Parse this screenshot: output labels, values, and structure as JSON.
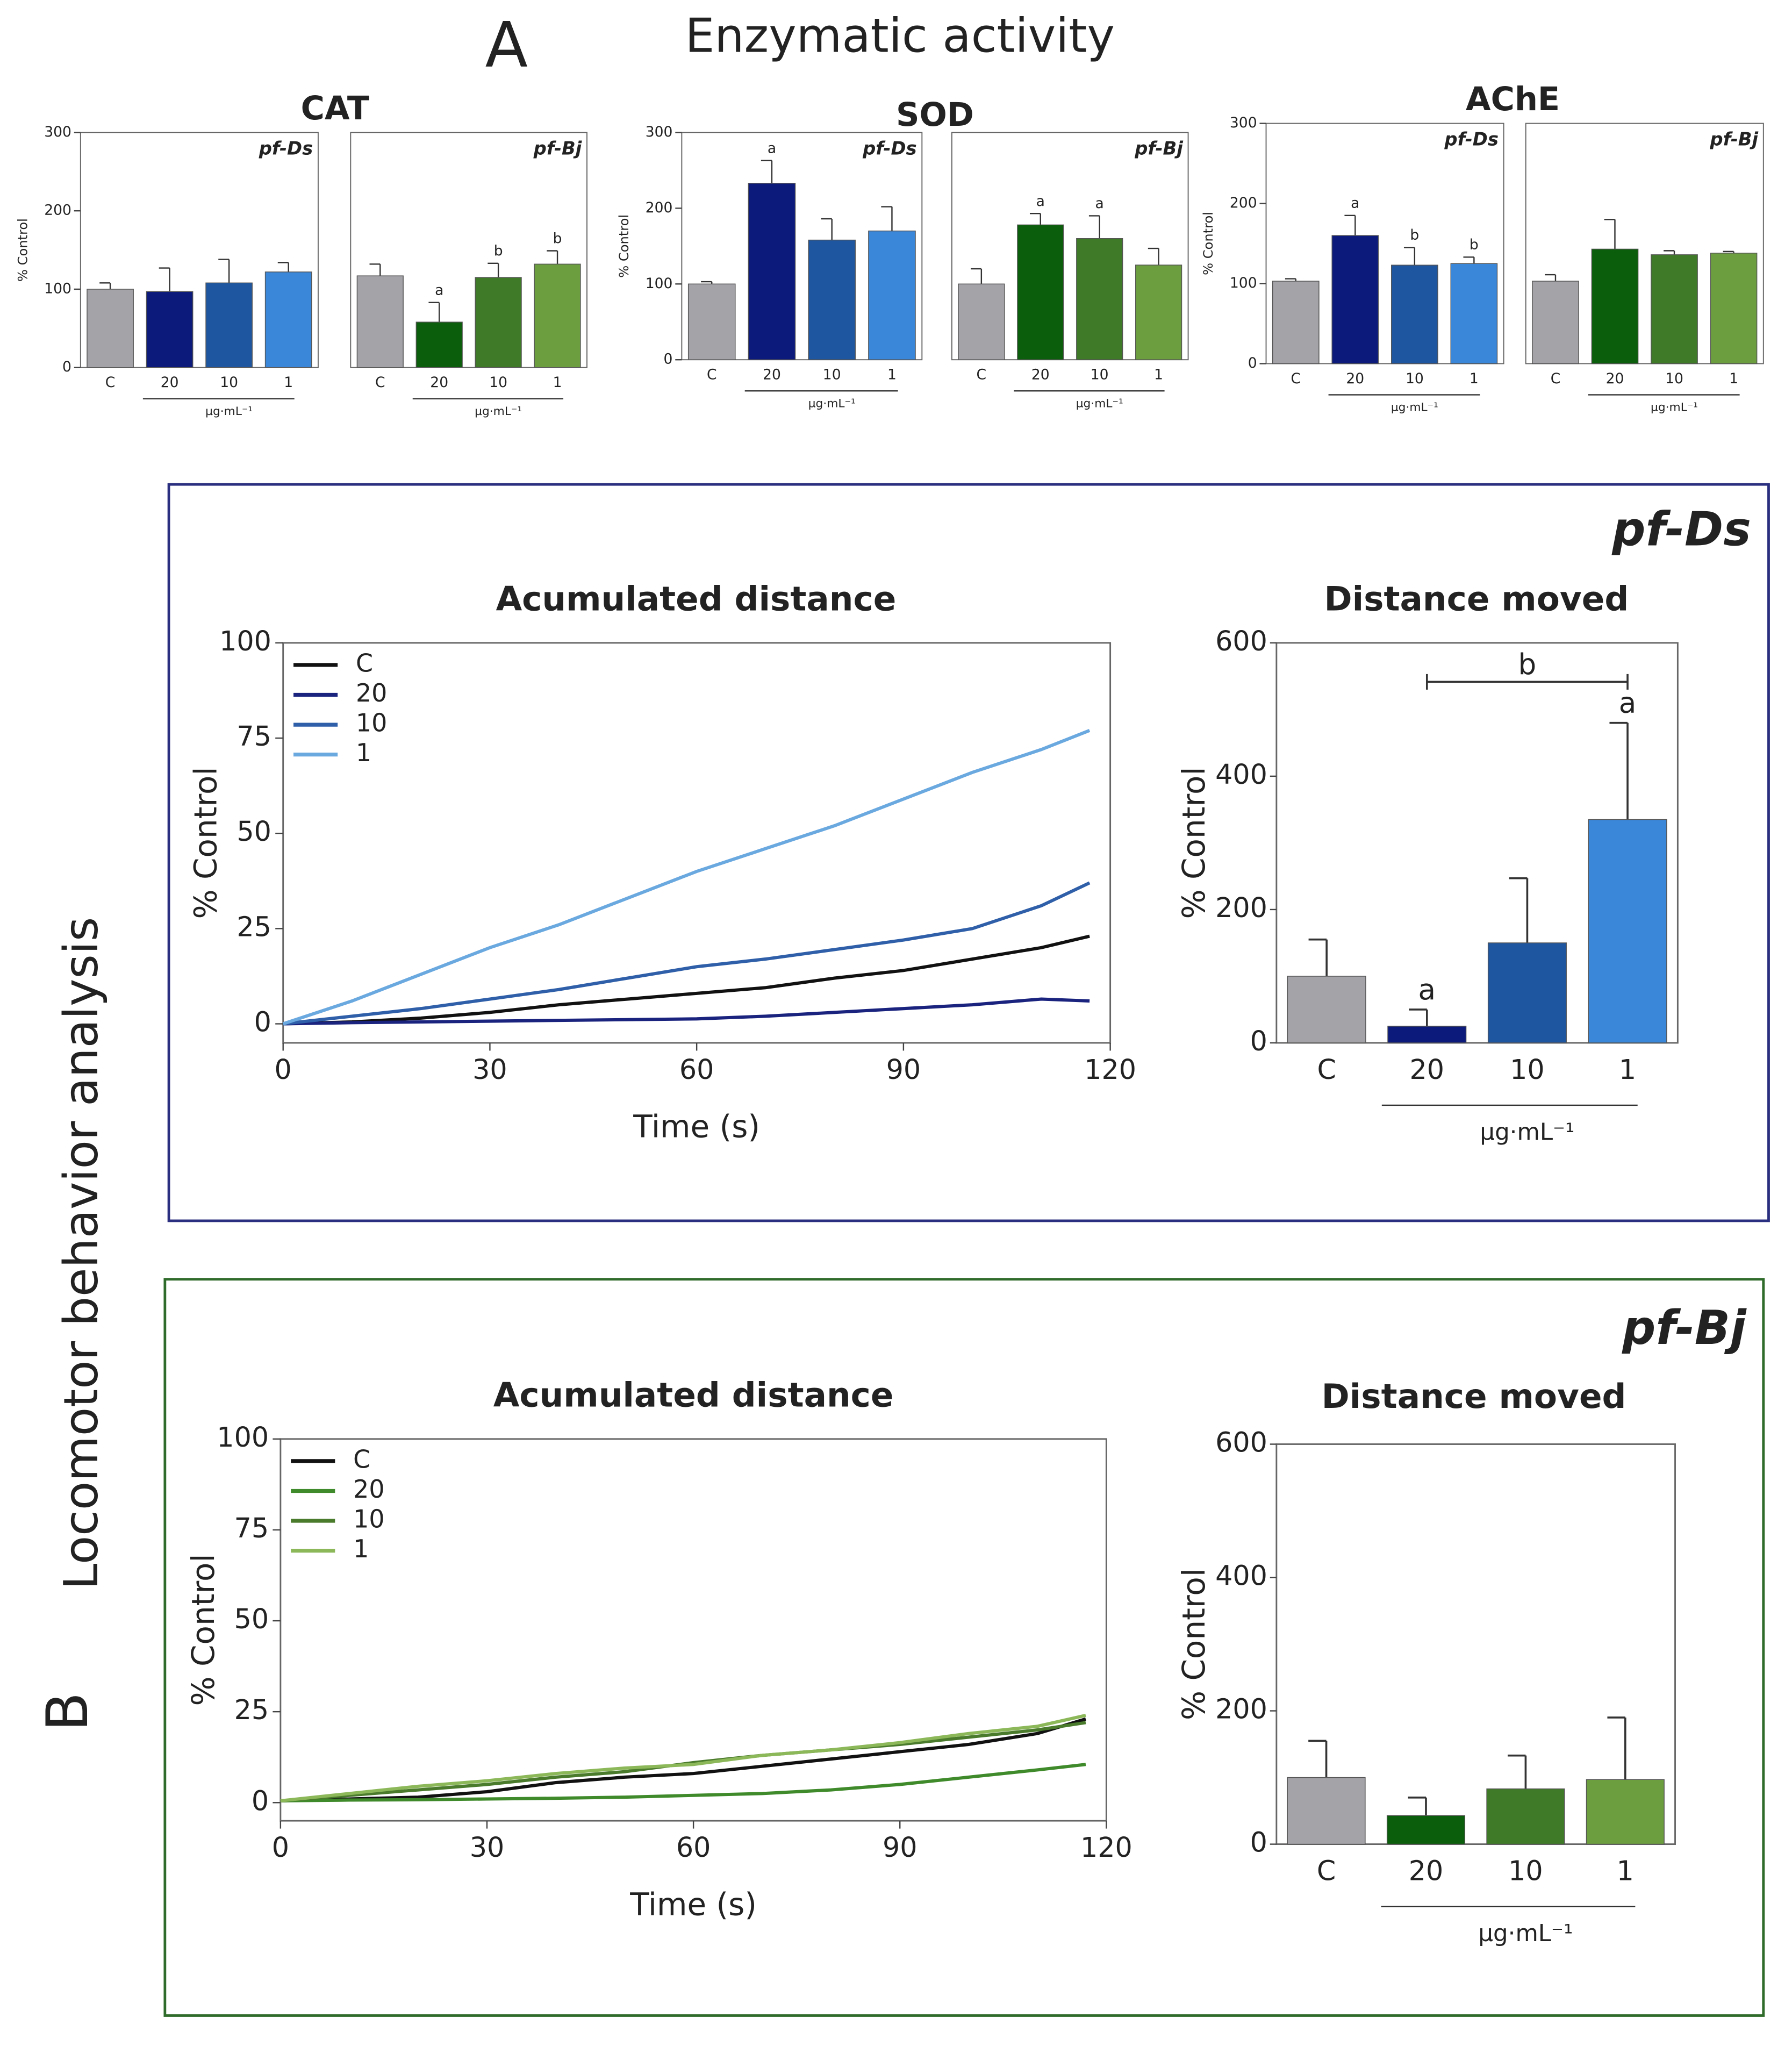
{
  "panel_a": {
    "label": "A",
    "title": "Enzymatic activity"
  },
  "panel_b": {
    "label": "B",
    "title": "Locomotor behavior analysis"
  },
  "boxes": [
    {
      "label": "pf-Ds",
      "color": "#2b2f7f"
    },
    {
      "label": "pf-Bj",
      "color": "#2f6b2a"
    }
  ],
  "chart_data": [
    {
      "type": "bar",
      "title": "CAT",
      "label": "pf-Ds",
      "label_color": "#1a237e",
      "ylabel": "% Control",
      "xlabel": "µg·mL⁻¹",
      "categories": [
        "C",
        "20",
        "10",
        "1"
      ],
      "values": [
        100,
        97,
        108,
        122
      ],
      "errors": [
        8,
        30,
        30,
        12
      ],
      "sig_labels": [
        null,
        null,
        null,
        null
      ],
      "colors": [
        "#a3a3a8",
        "#0c1a7c",
        "#1f56a0",
        "#3a86d9"
      ],
      "ylim": [
        0,
        300
      ],
      "yticks": [
        0,
        100,
        200,
        300
      ]
    },
    {
      "type": "bar",
      "label": "pf-Bj",
      "label_color": "#1f7a1a",
      "xlabel": "µg·mL⁻¹",
      "categories": [
        "C",
        "20",
        "10",
        "1"
      ],
      "values": [
        117,
        58,
        115,
        132
      ],
      "errors": [
        15,
        25,
        18,
        17
      ],
      "sig_labels": [
        null,
        "a",
        "b",
        "b"
      ],
      "colors": [
        "#a3a3a8",
        "#0b5e0b",
        "#3f7a28",
        "#6c9e3f"
      ],
      "ylim": [
        0,
        300
      ]
    },
    {
      "type": "bar",
      "title": "SOD",
      "label": "pf-Ds",
      "label_color": "#1a237e",
      "ylabel": "% Control",
      "xlabel": "µg·mL⁻¹",
      "categories": [
        "C",
        "20",
        "10",
        "1"
      ],
      "values": [
        100,
        233,
        158,
        170
      ],
      "errors": [
        3,
        30,
        28,
        32
      ],
      "sig_labels": [
        null,
        "a",
        null,
        null
      ],
      "colors": [
        "#a3a3a8",
        "#0c1a7c",
        "#1f56a0",
        "#3a86d9"
      ],
      "ylim": [
        0,
        300
      ],
      "yticks": [
        0,
        100,
        200,
        300
      ]
    },
    {
      "type": "bar",
      "label": "pf-Bj",
      "label_color": "#1f7a1a",
      "xlabel": "µg·mL⁻¹",
      "categories": [
        "C",
        "20",
        "10",
        "1"
      ],
      "values": [
        100,
        178,
        160,
        125
      ],
      "errors": [
        20,
        15,
        30,
        22
      ],
      "sig_labels": [
        null,
        "a",
        "a",
        null
      ],
      "colors": [
        "#a3a3a8",
        "#0b5e0b",
        "#3f7a28",
        "#6c9e3f"
      ],
      "ylim": [
        0,
        300
      ]
    },
    {
      "type": "bar",
      "title": "AChE",
      "label": "pf-Ds",
      "label_color": "#1a237e",
      "ylabel": "% Control",
      "xlabel": "µg·mL⁻¹",
      "categories": [
        "C",
        "20",
        "10",
        "1"
      ],
      "values": [
        103,
        160,
        123,
        125
      ],
      "errors": [
        3,
        25,
        22,
        8
      ],
      "sig_labels": [
        null,
        "a",
        "b",
        "b"
      ],
      "colors": [
        "#a3a3a8",
        "#0c1a7c",
        "#1f56a0",
        "#3a86d9"
      ],
      "ylim": [
        0,
        300
      ],
      "yticks": [
        0,
        100,
        200,
        300
      ]
    },
    {
      "type": "bar",
      "label": "pf-Bj",
      "label_color": "#1f7a1a",
      "xlabel": "µg·mL⁻¹",
      "categories": [
        "C",
        "20",
        "10",
        "1"
      ],
      "values": [
        103,
        143,
        136,
        138
      ],
      "errors": [
        8,
        37,
        5,
        2
      ],
      "sig_labels": [
        null,
        null,
        null,
        null
      ],
      "colors": [
        "#a3a3a8",
        "#0b5e0b",
        "#3f7a28",
        "#6c9e3f"
      ],
      "ylim": [
        0,
        300
      ]
    },
    {
      "type": "line",
      "title": "Acumulated distance",
      "xlabel": "Time (s)",
      "ylabel": "% Control",
      "x": [
        0,
        10,
        20,
        30,
        40,
        50,
        60,
        70,
        80,
        90,
        100,
        110,
        117
      ],
      "series": [
        {
          "name": "C",
          "color": "#111111",
          "values": [
            0,
            0.5,
            1.5,
            3,
            5,
            6.5,
            8,
            9.5,
            12,
            14,
            17,
            20,
            23
          ]
        },
        {
          "name": "20",
          "color": "#1a237e",
          "values": [
            0,
            0.3,
            0.5,
            0.7,
            0.9,
            1.1,
            1.3,
            2,
            3,
            4,
            5,
            6.5,
            6
          ]
        },
        {
          "name": "10",
          "color": "#2f5fa8",
          "values": [
            0,
            2,
            4,
            6.5,
            9,
            12,
            15,
            17,
            19.5,
            22,
            25,
            31,
            37
          ]
        },
        {
          "name": "1",
          "color": "#6aa8e0",
          "values": [
            0,
            6,
            13,
            20,
            26,
            33,
            40,
            46,
            52,
            59,
            66,
            72,
            77
          ]
        }
      ],
      "xlim": [
        0,
        120
      ],
      "xticks": [
        0,
        30,
        60,
        90,
        120
      ],
      "ylim": [
        -5,
        100
      ],
      "yticks": [
        0,
        25,
        50,
        75,
        100
      ]
    },
    {
      "type": "bar",
      "title": "Distance moved",
      "ylabel": "% Control",
      "xlabel": "µg·mL⁻¹",
      "categories": [
        "C",
        "20",
        "10",
        "1"
      ],
      "values": [
        100,
        25,
        150,
        335
      ],
      "errors": [
        55,
        25,
        97,
        145
      ],
      "sig_labels": [
        null,
        "a",
        null,
        "a"
      ],
      "brackets": [
        {
          "from": "20",
          "to": "1",
          "text": "b"
        }
      ],
      "colors": [
        "#a3a3a8",
        "#0c1a7c",
        "#1f56a0",
        "#3a86d9"
      ],
      "ylim": [
        0,
        600
      ],
      "yticks": [
        0,
        200,
        400,
        600
      ]
    },
    {
      "type": "line",
      "title": "Acumulated distance",
      "xlabel": "Time (s)",
      "ylabel": "% Control",
      "x": [
        0,
        10,
        20,
        30,
        40,
        50,
        60,
        70,
        80,
        90,
        100,
        110,
        117
      ],
      "series": [
        {
          "name": "C",
          "color": "#111111",
          "values": [
            0.5,
            1,
            1.5,
            3,
            5.5,
            7,
            8,
            10,
            12,
            14,
            16,
            19,
            23
          ]
        },
        {
          "name": "20",
          "color": "#3f8a2a",
          "values": [
            0.5,
            0.7,
            0.8,
            1,
            1.2,
            1.5,
            2,
            2.5,
            3.5,
            5,
            7,
            9,
            10.5
          ]
        },
        {
          "name": "10",
          "color": "#4a7a2c",
          "values": [
            0.5,
            2,
            3.5,
            5,
            7,
            8.5,
            11,
            13,
            14.5,
            16,
            18,
            20,
            22
          ]
        },
        {
          "name": "1",
          "color": "#8cb85a",
          "values": [
            0.5,
            2.5,
            4.5,
            6,
            8,
            9.5,
            10.5,
            13,
            14.5,
            16.5,
            19,
            21,
            24
          ]
        }
      ],
      "xlim": [
        0,
        120
      ],
      "xticks": [
        0,
        30,
        60,
        90,
        120
      ],
      "ylim": [
        -5,
        100
      ],
      "yticks": [
        0,
        25,
        50,
        75,
        100
      ]
    },
    {
      "type": "bar",
      "title": "Distance moved",
      "ylabel": "% Control",
      "xlabel": "µg·mL⁻¹",
      "categories": [
        "C",
        "20",
        "10",
        "1"
      ],
      "values": [
        100,
        43,
        83,
        97
      ],
      "errors": [
        55,
        27,
        50,
        93
      ],
      "sig_labels": [
        null,
        null,
        null,
        null
      ],
      "colors": [
        "#a3a3a8",
        "#0b5e0b",
        "#3f7a28",
        "#6c9e3f"
      ],
      "ylim": [
        0,
        600
      ],
      "yticks": [
        0,
        200,
        400,
        600
      ]
    }
  ]
}
